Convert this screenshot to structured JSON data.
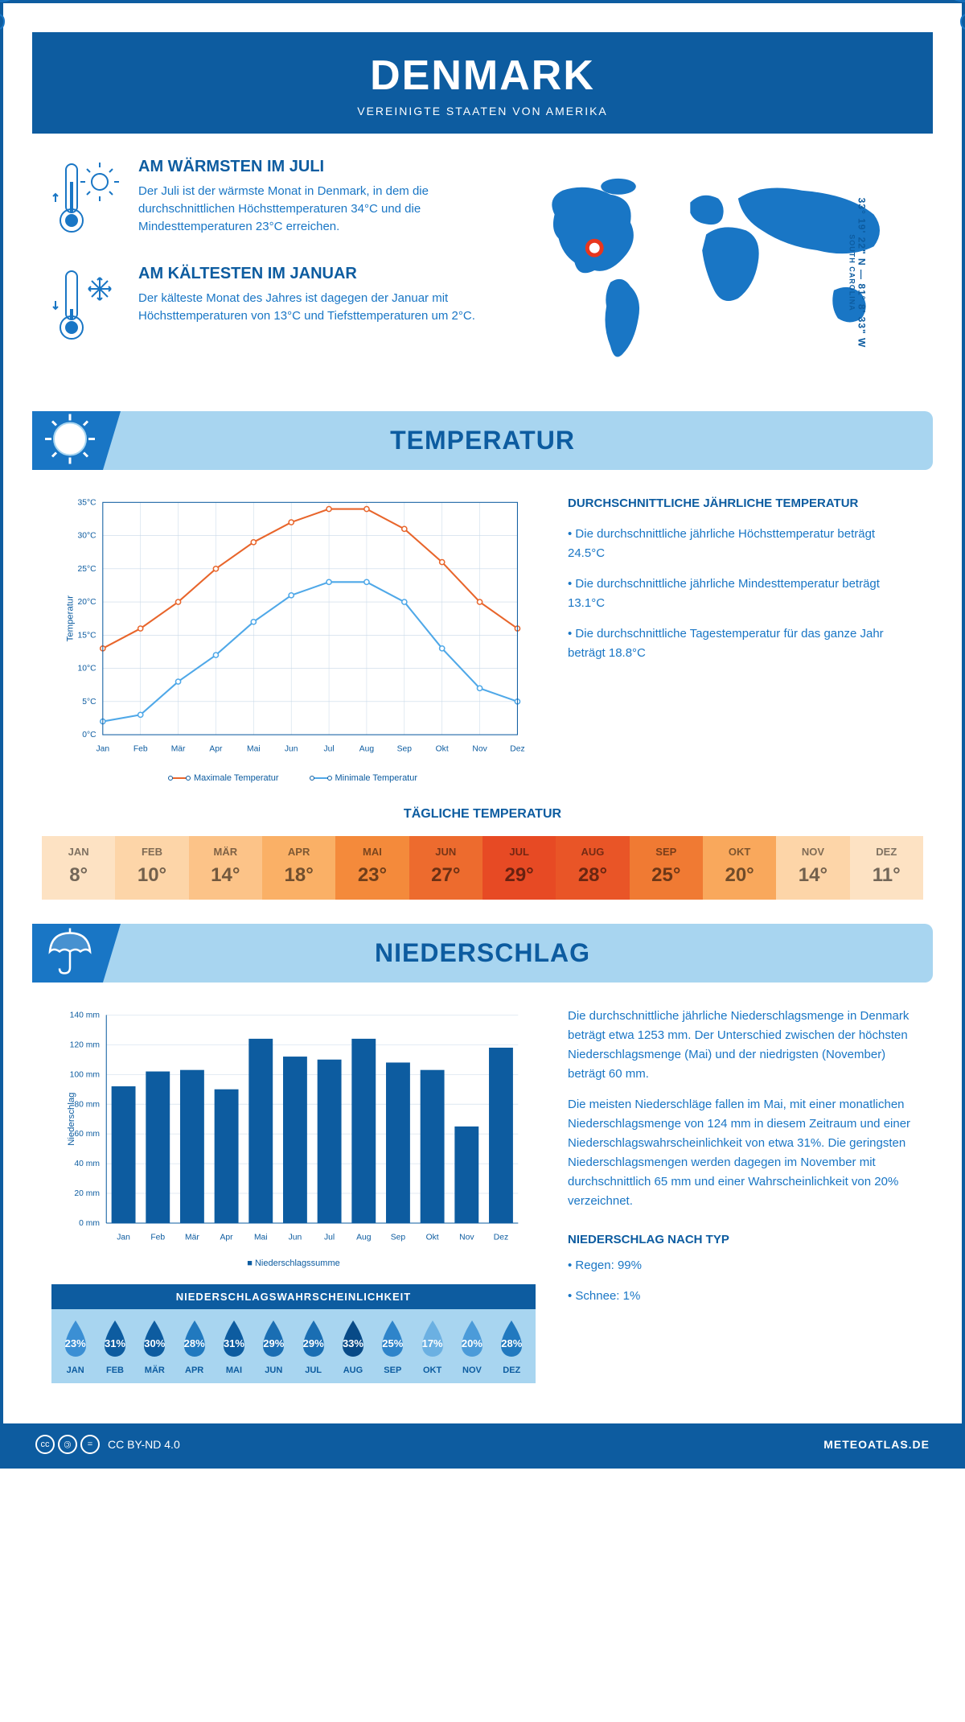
{
  "header": {
    "title": "DENMARK",
    "subtitle": "VEREINIGTE STAATEN VON AMERIKA"
  },
  "coords": {
    "text": "33° 19' 22\" N — 81° 8' 33\" W",
    "region": "SOUTH CAROLINA"
  },
  "warmest": {
    "title": "AM WÄRMSTEN IM JULI",
    "text": "Der Juli ist der wärmste Monat in Denmark, in dem die durchschnittlichen Höchsttemperaturen 34°C und die Mindesttemperaturen 23°C erreichen."
  },
  "coldest": {
    "title": "AM KÄLTESTEN IM JANUAR",
    "text": "Der kälteste Monat des Jahres ist dagegen der Januar mit Höchsttemperaturen von 13°C und Tiefsttemperaturen um 2°C."
  },
  "temp_section": {
    "title": "TEMPERATUR"
  },
  "temp_chart": {
    "months": [
      "Jan",
      "Feb",
      "Mär",
      "Apr",
      "Mai",
      "Jun",
      "Jul",
      "Aug",
      "Sep",
      "Okt",
      "Nov",
      "Dez"
    ],
    "y_axis_label": "Temperatur",
    "max_series": {
      "label": "Maximale Temperatur",
      "color": "#e8652b",
      "values": [
        13,
        16,
        20,
        25,
        29,
        32,
        34,
        34,
        31,
        26,
        20,
        16
      ]
    },
    "min_series": {
      "label": "Minimale Temperatur",
      "color": "#4fa8e8",
      "values": [
        2,
        3,
        8,
        12,
        17,
        21,
        23,
        23,
        20,
        13,
        7,
        5
      ]
    },
    "ylim": [
      0,
      35
    ],
    "ytick": 5
  },
  "temp_text": {
    "title": "DURCHSCHNITTLICHE JÄHRLICHE TEMPERATUR",
    "b1": "• Die durchschnittliche jährliche Höchsttemperatur beträgt 24.5°C",
    "b2": "• Die durchschnittliche jährliche Mindesttemperatur beträgt 13.1°C",
    "b3": "• Die durchschnittliche Tagestemperatur für das ganze Jahr beträgt 18.8°C"
  },
  "daily_temp": {
    "title": "TÄGLICHE TEMPERATUR",
    "months": [
      "JAN",
      "FEB",
      "MÄR",
      "APR",
      "MAI",
      "JUN",
      "JUL",
      "AUG",
      "SEP",
      "OKT",
      "NOV",
      "DEZ"
    ],
    "values": [
      "8°",
      "10°",
      "14°",
      "18°",
      "23°",
      "27°",
      "29°",
      "28°",
      "25°",
      "20°",
      "14°",
      "11°"
    ],
    "colors": [
      "#fde2c3",
      "#fdd5a8",
      "#fcc388",
      "#fab066",
      "#f48a3b",
      "#ed6b2e",
      "#e74a24",
      "#e95527",
      "#f07a33",
      "#f9a85c",
      "#fdd5a8",
      "#fde2c3"
    ]
  },
  "precip_section": {
    "title": "NIEDERSCHLAG"
  },
  "precip_chart": {
    "months": [
      "Jan",
      "Feb",
      "Mär",
      "Apr",
      "Mai",
      "Jun",
      "Jul",
      "Aug",
      "Sep",
      "Okt",
      "Nov",
      "Dez"
    ],
    "y_axis_label": "Niederschlag",
    "values": [
      92,
      102,
      103,
      90,
      124,
      112,
      110,
      124,
      108,
      103,
      65,
      118
    ],
    "ylim": [
      0,
      140
    ],
    "ytick": 20,
    "bar_color": "#0d5ca0",
    "legend": "Niederschlagssumme"
  },
  "precip_text": {
    "p1": "Die durchschnittliche jährliche Niederschlagsmenge in Denmark beträgt etwa 1253 mm. Der Unterschied zwischen der höchsten Niederschlagsmenge (Mai) und der niedrigsten (November) beträgt 60 mm.",
    "p2": "Die meisten Niederschläge fallen im Mai, mit einer monatlichen Niederschlagsmenge von 124 mm in diesem Zeitraum und einer Niederschlagswahrscheinlichkeit von etwa 31%. Die geringsten Niederschlagsmengen werden dagegen im November mit durchschnittlich 65 mm und einer Wahrscheinlichkeit von 20% verzeichnet."
  },
  "precip_prob": {
    "title": "NIEDERSCHLAGSWAHRSCHEINLICHKEIT",
    "months": [
      "JAN",
      "FEB",
      "MÄR",
      "APR",
      "MAI",
      "JUN",
      "JUL",
      "AUG",
      "SEP",
      "OKT",
      "NOV",
      "DEZ"
    ],
    "values": [
      "23%",
      "31%",
      "30%",
      "28%",
      "31%",
      "29%",
      "29%",
      "33%",
      "25%",
      "17%",
      "20%",
      "28%"
    ],
    "colors": [
      "#3b8fd4",
      "#0d5ca0",
      "#0d5ca0",
      "#2179bf",
      "#0d5ca0",
      "#1a6eb3",
      "#1a6eb3",
      "#084a87",
      "#2e84ca",
      "#6bb0e2",
      "#4b9bd9",
      "#2179bf"
    ]
  },
  "precip_type": {
    "title": "NIEDERSCHLAG NACH TYP",
    "b1": "• Regen: 99%",
    "b2": "• Schnee: 1%"
  },
  "footer": {
    "license": "CC BY-ND 4.0",
    "source": "METEOATLAS.DE"
  }
}
